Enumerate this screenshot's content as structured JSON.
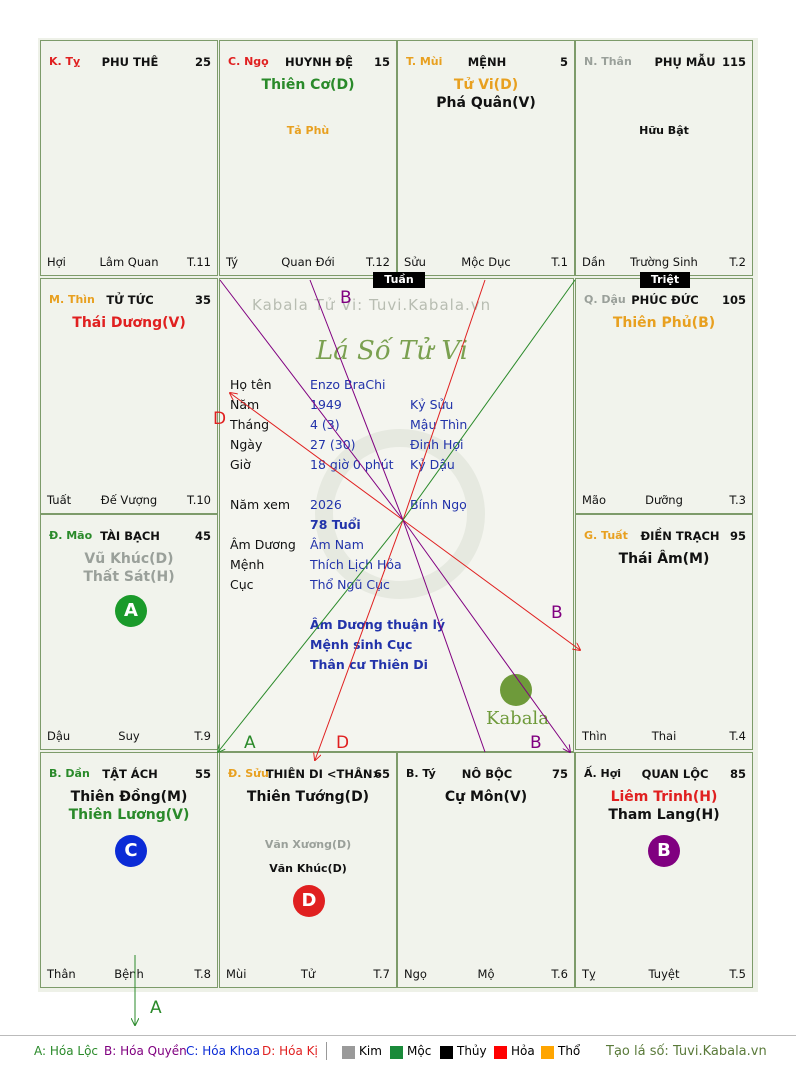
{
  "colors": {
    "green": "#2a8a2a",
    "orange": "#e8a020",
    "red": "#e02020",
    "gray": "#9aa09a",
    "purple": "#800080",
    "blue": "#0b2bd6"
  },
  "palaces": {
    "ty": {
      "branch": "K. Tỵ",
      "name": "PHU THÊ",
      "age": "25",
      "stars": [],
      "bl": "Hợi",
      "bc": "Lâm Quan",
      "br": "T.11"
    },
    "ngo": {
      "branch": "C. Ngọ",
      "name": "HUYNH ĐỆ",
      "age": "15",
      "stars": [
        "Thiên Cơ(D)"
      ],
      "minor": [
        "Tả Phù"
      ],
      "bl": "Tý",
      "bc": "Quan Đới",
      "br": "T.12"
    },
    "mui": {
      "branch": "T. Mùi",
      "name": "MỆNH",
      "age": "5",
      "stars": [
        "Tử Vi(D)",
        "Phá Quân(V)"
      ],
      "bl": "Sửu",
      "bc": "Mộc Dục",
      "br": "T.1"
    },
    "than": {
      "branch": "N. Thân",
      "name": "PHỤ MẪU",
      "age": "115",
      "minor": [
        "Hữu Bật"
      ],
      "bl": "Dần",
      "bc": "Trường Sinh",
      "br": "T.2"
    },
    "thin": {
      "branch": "M. Thìn",
      "name": "TỬ TỨC",
      "age": "35",
      "stars": [
        "Thái Dương(V)"
      ],
      "bl": "Tuất",
      "bc": "Đế Vượng",
      "br": "T.10"
    },
    "dau": {
      "branch": "Q. Dậu",
      "name": "PHÚC ĐỨC",
      "age": "105",
      "stars": [
        "Thiên Phủ(B)"
      ],
      "bl": "Mão",
      "bc": "Dưỡng",
      "br": "T.3"
    },
    "mao": {
      "branch": "Đ. Mão",
      "name": "TÀI BẠCH",
      "age": "45",
      "stars": [
        "Vũ Khúc(D)",
        "Thất Sát(H)"
      ],
      "circle": "A",
      "bl": "Dậu",
      "bc": "Suy",
      "br": "T.9"
    },
    "tuat": {
      "branch": "G. Tuất",
      "name": "ĐIỀN TRẠCH",
      "age": "95",
      "stars": [
        "Thái Âm(M)"
      ],
      "bl": "Thìn",
      "bc": "Thai",
      "br": "T.4"
    },
    "dan": {
      "branch": "B. Dần",
      "name": "TẬT ÁCH",
      "age": "55",
      "stars": [
        "Thiên Đồng(M)",
        "Thiên Lương(V)"
      ],
      "circle": "C",
      "bl": "Thân",
      "bc": "Bệnh",
      "br": "T.8"
    },
    "suu": {
      "branch": "Đ. Sửu",
      "name": "THIÊN DI <THÂN>",
      "age": "65",
      "stars": [
        "Thiên Tướng(D)"
      ],
      "minor": [
        "Văn Xương(D)",
        "Văn Khúc(D)"
      ],
      "circle": "D",
      "bl": "Mùi",
      "bc": "Tử",
      "br": "T.7"
    },
    "ti": {
      "branch": "B. Tý",
      "name": "NÔ BỘC",
      "age": "75",
      "stars": [
        "Cự Môn(V)"
      ],
      "bl": "Ngọ",
      "bc": "Mộ",
      "br": "T.6"
    },
    "hoi": {
      "branch": "Ấ. Hợi",
      "name": "QUAN LỘC",
      "age": "85",
      "stars": [
        "Liêm Trinh(H)",
        "Tham Lang(H)"
      ],
      "circle": "B",
      "bl": "Tỵ",
      "bc": "Tuyệt",
      "br": "T.5"
    }
  },
  "badges": {
    "tuan": "Tuần",
    "triet": "Triệt"
  },
  "center": {
    "watermark": "Kabala Tử Vi: Tuvi.Kabala.vn",
    "title": "Lá Số Tử Vi",
    "rows": [
      {
        "label": "Họ tên",
        "v1": "Enzo BraChi",
        "v2": ""
      },
      {
        "label": "Năm",
        "v1": "1949",
        "v2": "Kỷ Sửu"
      },
      {
        "label": "Tháng",
        "v1": "4  (3)",
        "v2": "Mậu Thìn"
      },
      {
        "label": "Ngày",
        "v1": "27  (30)",
        "v2": "Đinh Hợi"
      },
      {
        "label": "Giờ",
        "v1": "18 giờ 0 phút",
        "v2": "Kỷ Dậu"
      },
      {
        "label": "Năm xem",
        "v1": "2026",
        "v2": "Bính Ngọ"
      },
      {
        "label": "",
        "v1": "78 Tuổi",
        "v2": ""
      },
      {
        "label": "Âm Dương",
        "v1": "Âm Nam",
        "v2": ""
      },
      {
        "label": "Mệnh",
        "v1": "Thích Lịch Hỏa",
        "v2": ""
      },
      {
        "label": "Cục",
        "v1": "Thổ Ngũ Cục",
        "v2": ""
      }
    ],
    "notes": [
      "Âm Dương thuận lý",
      "Mệnh sinh Cục",
      "Thân cư Thiên Di"
    ],
    "brand": "Kabala"
  },
  "arrows": {
    "a": "A",
    "b": "B",
    "d": "D"
  },
  "legend": {
    "a": "A: Hóa Lộc",
    "b": "B: Hóa Quyền",
    "c": "C: Hóa Khoa",
    "d": "D: Hóa Kị",
    "kim": "Kim",
    "moc": "Mộc",
    "thuy": "Thủy",
    "hoa": "Hỏa",
    "tho": "Thổ",
    "site": "Tạo lá số: Tuvi.Kabala.vn"
  }
}
